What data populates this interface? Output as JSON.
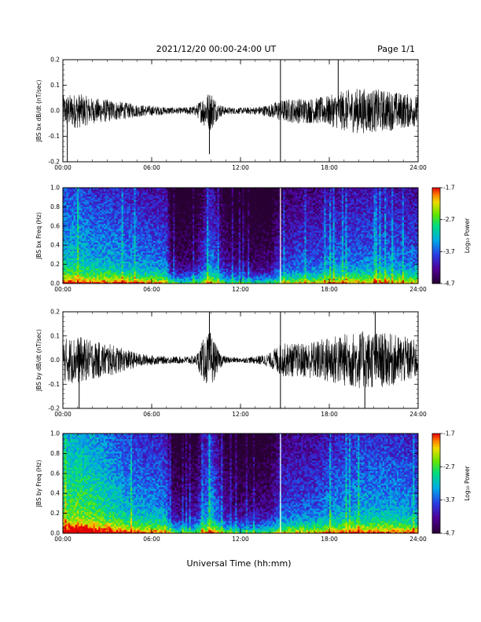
{
  "header": {
    "title": "2021/12/20  00:00-24:00 UT",
    "page": "Page 1/1"
  },
  "footer": {
    "xlabel": "Universal Time (hh:mm)"
  },
  "chart_data": [
    {
      "type": "line",
      "ylabel": "JBS bx dB/dt (nT/sec)",
      "xlim": [
        0,
        24
      ],
      "ylim": [
        -0.2,
        0.2
      ],
      "xticks": [
        "00:00",
        "06:00",
        "12:00",
        "18:00",
        "24:00"
      ],
      "yticks": [
        "-0.2",
        "-0.1",
        "0.0",
        "0.1",
        "0.2"
      ],
      "amplitude_envelope": {
        "x": [
          0,
          1,
          2,
          3,
          4,
          5,
          6,
          7,
          8,
          9,
          9.5,
          10,
          10.5,
          11,
          12,
          13,
          14,
          14.5,
          15,
          16,
          17,
          18,
          19,
          20,
          21,
          22,
          23,
          24
        ],
        "y": [
          0.06,
          0.07,
          0.05,
          0.045,
          0.035,
          0.025,
          0.02,
          0.015,
          0.012,
          0.02,
          0.06,
          0.08,
          0.03,
          0.015,
          0.012,
          0.015,
          0.025,
          0.04,
          0.045,
          0.05,
          0.05,
          0.06,
          0.08,
          0.09,
          0.085,
          0.08,
          0.07,
          0.06
        ]
      },
      "spikes": [
        {
          "x": 0.3,
          "y": -0.2
        },
        {
          "x": 9.9,
          "y": -0.17
        },
        {
          "x": 14.7,
          "y": 0.2
        },
        {
          "x": 14.7,
          "y": -0.2
        },
        {
          "x": 18.6,
          "y": 0.2
        }
      ]
    },
    {
      "type": "heatmap",
      "ylabel": "JBS bx Freq (Hz)",
      "xlim": [
        0,
        24
      ],
      "ylim": [
        0.0,
        1.0
      ],
      "xticks": [
        "00:00",
        "06:00",
        "12:00",
        "18:00",
        "24:00"
      ],
      "yticks": [
        "0.0",
        "0.2",
        "0.4",
        "0.6",
        "0.8",
        "1.0"
      ],
      "colorbar": {
        "label": "Log₁₀ Power",
        "range": [
          -4.7,
          -1.7
        ],
        "ticks": [
          "-1.7",
          "-2.7",
          "-3.7",
          "-4.7"
        ]
      },
      "activity_profile": {
        "x": [
          0,
          1,
          2,
          3,
          4,
          5,
          6,
          7,
          7.3,
          8,
          9,
          9.5,
          10,
          10.5,
          11,
          12,
          13,
          14,
          14.5,
          15,
          16,
          17,
          18,
          19,
          20,
          21,
          22,
          23,
          24
        ],
        "level": [
          0.55,
          0.55,
          0.5,
          0.5,
          0.47,
          0.45,
          0.42,
          0.4,
          0.15,
          0.12,
          0.15,
          0.3,
          0.45,
          0.3,
          0.18,
          0.12,
          0.1,
          0.12,
          0.25,
          0.3,
          0.35,
          0.35,
          0.4,
          0.4,
          0.42,
          0.42,
          0.42,
          0.4,
          0.4
        ]
      },
      "data_gap_x": 14.7
    },
    {
      "type": "line",
      "ylabel": "JBS by dB/dt (nT/sec)",
      "xlim": [
        0,
        24
      ],
      "ylim": [
        -0.2,
        0.2
      ],
      "xticks": [
        "00:00",
        "06:00",
        "12:00",
        "18:00",
        "24:00"
      ],
      "yticks": [
        "-0.2",
        "-0.1",
        "0.0",
        "0.1",
        "0.2"
      ],
      "amplitude_envelope": {
        "x": [
          0,
          1,
          2,
          3,
          4,
          5,
          6,
          7,
          8,
          9,
          9.5,
          10,
          10.5,
          11,
          12,
          13,
          14,
          14.5,
          15,
          16,
          17,
          18,
          19,
          20,
          21,
          22,
          23,
          24
        ],
        "y": [
          0.09,
          0.1,
          0.08,
          0.07,
          0.05,
          0.03,
          0.02,
          0.015,
          0.015,
          0.02,
          0.09,
          0.12,
          0.04,
          0.015,
          0.01,
          0.015,
          0.03,
          0.06,
          0.07,
          0.07,
          0.08,
          0.1,
          0.11,
          0.12,
          0.12,
          0.11,
          0.1,
          0.08
        ]
      },
      "spikes": [
        {
          "x": 1.1,
          "y": -0.2
        },
        {
          "x": 9.9,
          "y": 0.2
        },
        {
          "x": 14.7,
          "y": -0.2
        },
        {
          "x": 14.7,
          "y": 0.2
        },
        {
          "x": 20.4,
          "y": -0.2
        },
        {
          "x": 21.1,
          "y": 0.2
        }
      ]
    },
    {
      "type": "heatmap",
      "ylabel": "JBS by Freq (Hz)",
      "xlim": [
        0,
        24
      ],
      "ylim": [
        0.0,
        1.0
      ],
      "xticks": [
        "00:00",
        "06:00",
        "12:00",
        "18:00",
        "24:00"
      ],
      "yticks": [
        "0.0",
        "0.2",
        "0.4",
        "0.6",
        "0.8",
        "1.0"
      ],
      "colorbar": {
        "label": "Log₁₀ Power",
        "range": [
          -4.7,
          -1.7
        ],
        "ticks": [
          "-1.7",
          "-2.7",
          "-3.7",
          "-4.7"
        ]
      },
      "activity_profile": {
        "x": [
          0,
          1,
          2,
          3,
          4,
          5,
          6,
          7,
          7.3,
          8,
          9,
          9.5,
          10,
          10.5,
          11,
          12,
          13,
          14,
          14.5,
          15,
          16,
          17,
          18,
          19,
          20,
          21,
          22,
          23,
          24
        ],
        "level": [
          0.7,
          0.72,
          0.68,
          0.62,
          0.55,
          0.5,
          0.47,
          0.45,
          0.2,
          0.15,
          0.2,
          0.38,
          0.5,
          0.35,
          0.2,
          0.15,
          0.15,
          0.2,
          0.3,
          0.35,
          0.38,
          0.38,
          0.45,
          0.47,
          0.5,
          0.5,
          0.5,
          0.48,
          0.45
        ]
      },
      "data_gap_x": 14.7
    }
  ]
}
